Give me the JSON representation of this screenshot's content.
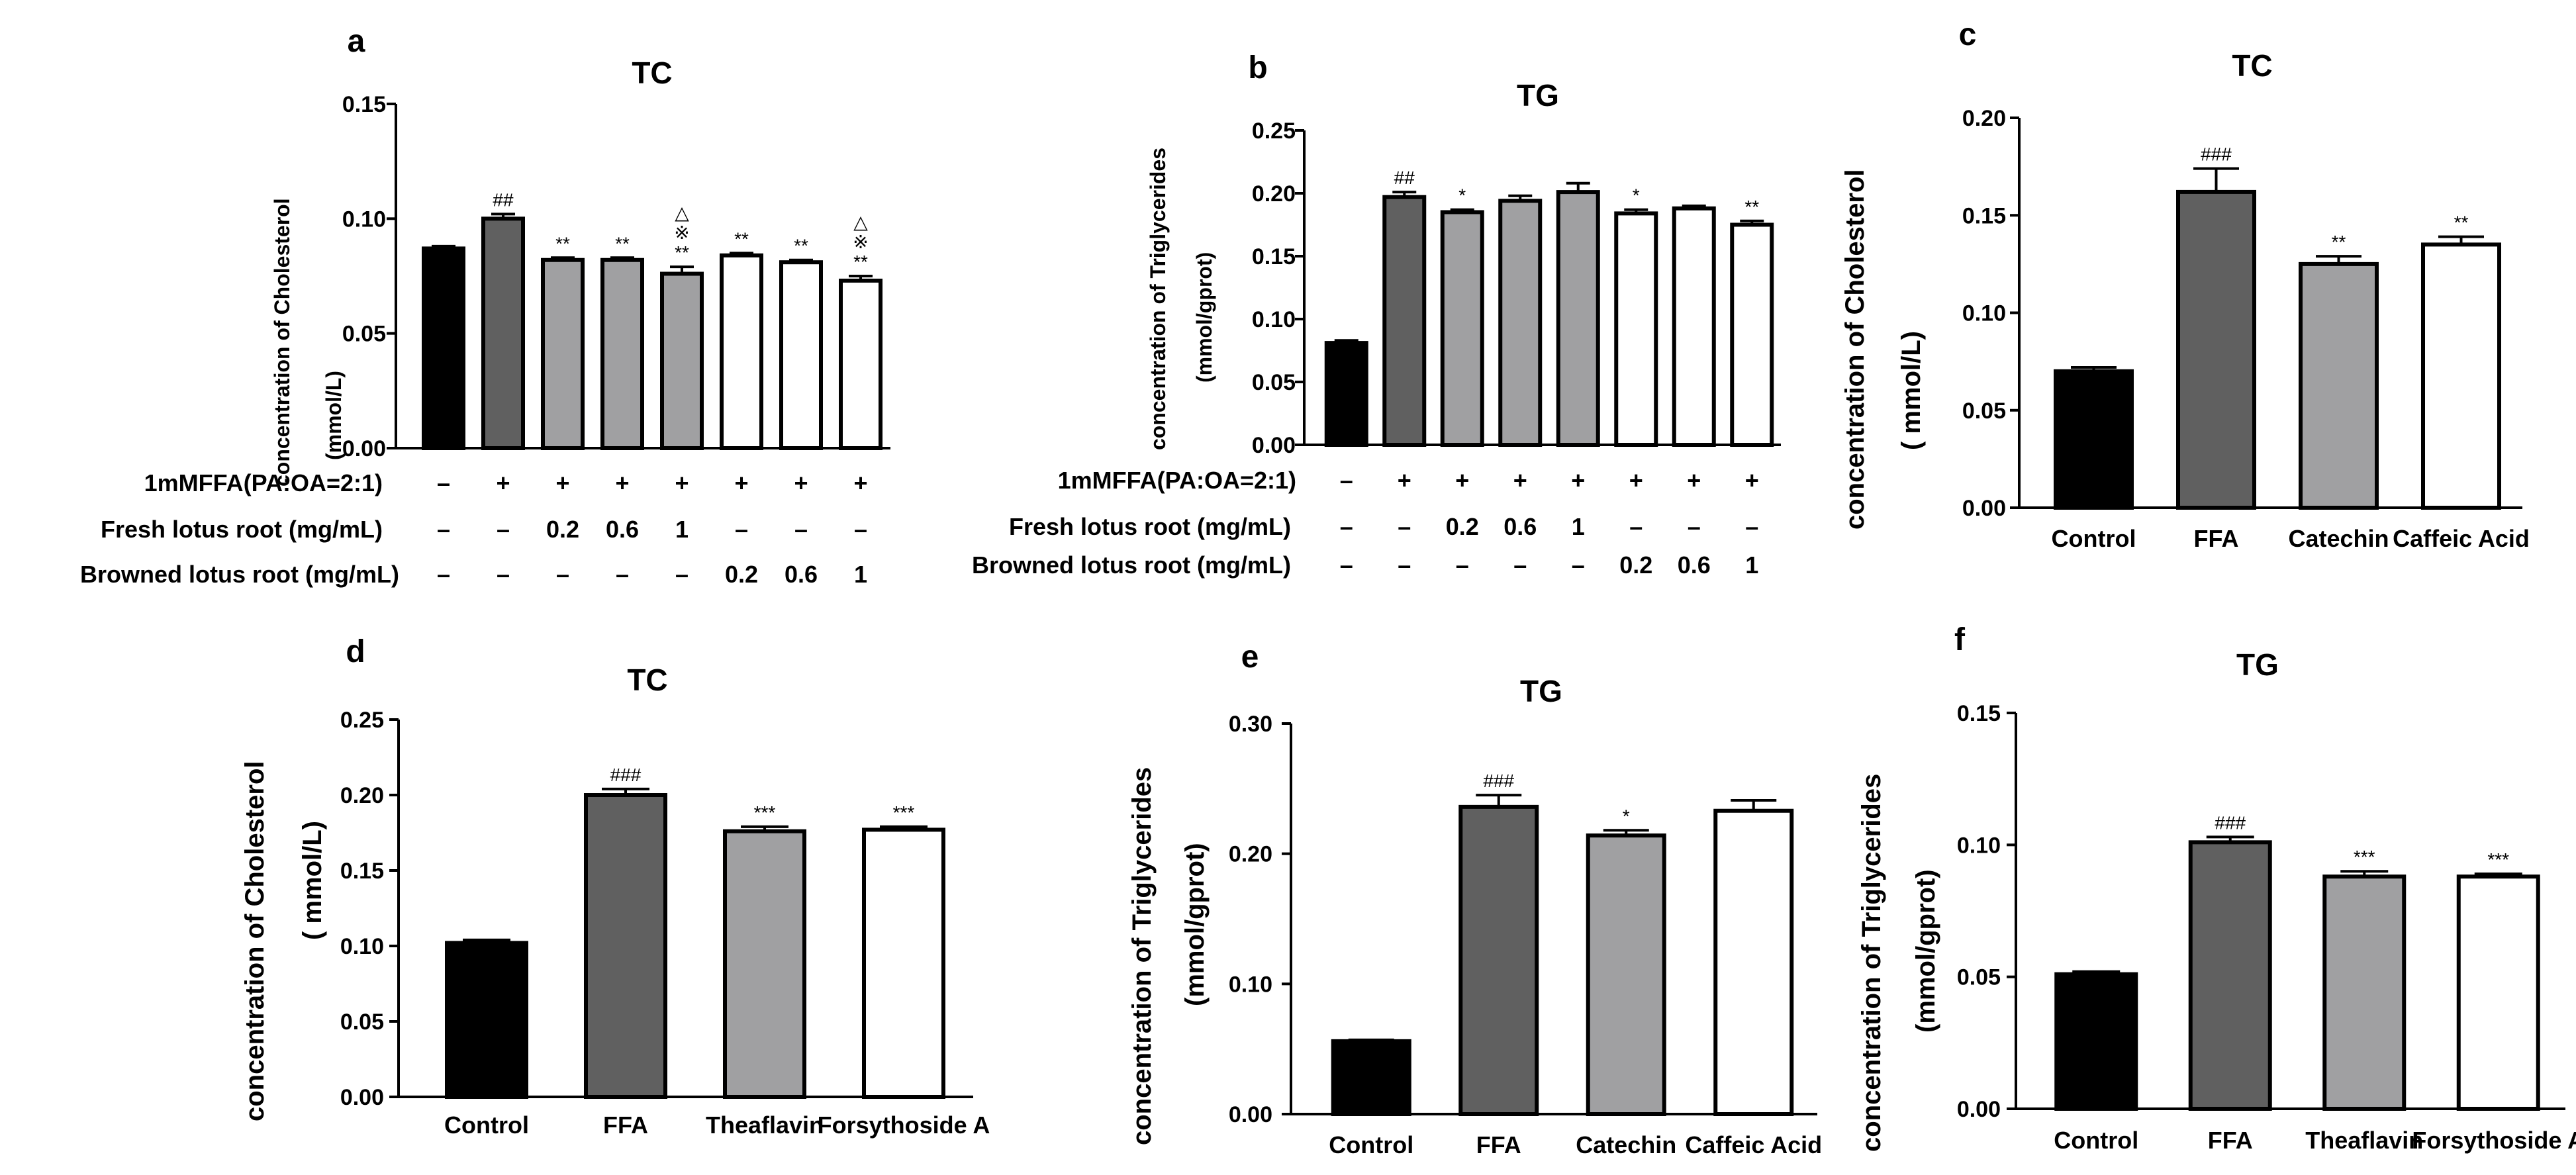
{
  "colors": {
    "control": "#000000",
    "ffa": "#606060",
    "treat": "#a0a0a2",
    "browned": "#ffffff",
    "stroke": "#000000",
    "text": "#000000"
  },
  "chart_data": [
    {
      "panel": "a",
      "type": "bar",
      "title": "TC",
      "ylabel_lines": [
        "concentration of Cholesterol",
        "(mmol/L)"
      ],
      "ylim": [
        0,
        0.15
      ],
      "yticks": [
        {
          "value": 0,
          "label": "0.00"
        },
        {
          "value": 0.05,
          "label": "0.05"
        },
        {
          "value": 0.1,
          "label": "0.10"
        },
        {
          "value": 0.15,
          "label": "0.15"
        }
      ],
      "bars": [
        {
          "value": 0.087,
          "error": 0.001,
          "fill": "control",
          "marks": []
        },
        {
          "value": 0.1,
          "error": 0.002,
          "fill": "ffa",
          "marks": [
            "##"
          ]
        },
        {
          "value": 0.082,
          "error": 0.001,
          "fill": "treat",
          "marks": [
            "**"
          ]
        },
        {
          "value": 0.082,
          "error": 0.001,
          "fill": "treat",
          "marks": [
            "**"
          ]
        },
        {
          "value": 0.076,
          "error": 0.003,
          "fill": "treat",
          "marks": [
            "△",
            "※",
            "**"
          ]
        },
        {
          "value": 0.084,
          "error": 0.001,
          "fill": "browned",
          "marks": [
            "**"
          ]
        },
        {
          "value": 0.081,
          "error": 0.001,
          "fill": "browned",
          "marks": [
            "**"
          ]
        },
        {
          "value": 0.073,
          "error": 0.002,
          "fill": "browned",
          "marks": [
            "△",
            "※",
            "**"
          ]
        }
      ],
      "conditions": [
        {
          "label": "1mMFFA(PA:OA=2:1)",
          "values": [
            "–",
            "+",
            "+",
            "+",
            "+",
            "+",
            "+",
            "+"
          ]
        },
        {
          "label": "Fresh lotus root (mg/mL)",
          "values": [
            "–",
            "–",
            "0.2",
            "0.6",
            "1",
            "–",
            "–",
            "–"
          ]
        },
        {
          "label": "Browned lotus root (mg/mL)",
          "values": [
            "–",
            "–",
            "–",
            "–",
            "–",
            "0.2",
            "0.6",
            "1"
          ]
        }
      ]
    },
    {
      "panel": "b",
      "type": "bar",
      "title": "TG",
      "ylabel_lines": [
        "concentration of Triglycerides",
        "(mmol/gprot)"
      ],
      "ylim": [
        0,
        0.25
      ],
      "yticks": [
        {
          "value": 0,
          "label": "0.00"
        },
        {
          "value": 0.05,
          "label": "0.05"
        },
        {
          "value": 0.1,
          "label": "0.10"
        },
        {
          "value": 0.15,
          "label": "0.15"
        },
        {
          "value": 0.2,
          "label": "0.20"
        },
        {
          "value": 0.25,
          "label": "0.25"
        }
      ],
      "bars": [
        {
          "value": 0.081,
          "error": 0.002,
          "fill": "control",
          "marks": []
        },
        {
          "value": 0.197,
          "error": 0.004,
          "fill": "ffa",
          "marks": [
            "##"
          ]
        },
        {
          "value": 0.185,
          "error": 0.002,
          "fill": "treat",
          "marks": [
            "*"
          ]
        },
        {
          "value": 0.194,
          "error": 0.004,
          "fill": "treat",
          "marks": []
        },
        {
          "value": 0.201,
          "error": 0.007,
          "fill": "treat",
          "marks": []
        },
        {
          "value": 0.184,
          "error": 0.003,
          "fill": "browned",
          "marks": [
            "*"
          ]
        },
        {
          "value": 0.188,
          "error": 0.002,
          "fill": "browned",
          "marks": []
        },
        {
          "value": 0.175,
          "error": 0.003,
          "fill": "browned",
          "marks": [
            "**"
          ]
        }
      ],
      "conditions": [
        {
          "label": "1mMFFA(PA:OA=2:1)",
          "values": [
            "–",
            "+",
            "+",
            "+",
            "+",
            "+",
            "+",
            "+"
          ]
        },
        {
          "label": "Fresh lotus root (mg/mL)",
          "values": [
            "–",
            "–",
            "0.2",
            "0.6",
            "1",
            "–",
            "–",
            "–"
          ]
        },
        {
          "label": "Browned lotus root (mg/mL)",
          "values": [
            "–",
            "–",
            "–",
            "–",
            "–",
            "0.2",
            "0.6",
            "1"
          ]
        }
      ]
    },
    {
      "panel": "c",
      "type": "bar",
      "title": "TC",
      "ylabel_lines": [
        "concentration of Cholesterol",
        "( mmol/L)"
      ],
      "ylim": [
        0,
        0.2
      ],
      "yticks": [
        {
          "value": 0,
          "label": "0.00"
        },
        {
          "value": 0.05,
          "label": "0.05"
        },
        {
          "value": 0.1,
          "label": "0.10"
        },
        {
          "value": 0.15,
          "label": "0.15"
        },
        {
          "value": 0.2,
          "label": "0.20"
        }
      ],
      "categories": [
        "Control",
        "FFA",
        "Catechin",
        "Caffeic Acid"
      ],
      "bars": [
        {
          "value": 0.07,
          "error": 0.002,
          "fill": "control",
          "marks": []
        },
        {
          "value": 0.162,
          "error": 0.012,
          "fill": "ffa",
          "marks": [
            "###"
          ]
        },
        {
          "value": 0.125,
          "error": 0.004,
          "fill": "treat",
          "marks": [
            "**"
          ]
        },
        {
          "value": 0.135,
          "error": 0.004,
          "fill": "browned",
          "marks": [
            "**"
          ]
        }
      ]
    },
    {
      "panel": "d",
      "type": "bar",
      "title": "TC",
      "ylabel_lines": [
        "concentration of Cholesterol",
        "( mmol/L)"
      ],
      "ylim": [
        0,
        0.25
      ],
      "yticks": [
        {
          "value": 0,
          "label": "0.00"
        },
        {
          "value": 0.05,
          "label": "0.05"
        },
        {
          "value": 0.1,
          "label": "0.10"
        },
        {
          "value": 0.15,
          "label": "0.15"
        },
        {
          "value": 0.2,
          "label": "0.20"
        },
        {
          "value": 0.25,
          "label": "0.25"
        }
      ],
      "categories": [
        "Control",
        "FFA",
        "Theaflavin",
        "Forsythoside A"
      ],
      "bars": [
        {
          "value": 0.102,
          "error": 0.002,
          "fill": "control",
          "marks": []
        },
        {
          "value": 0.2,
          "error": 0.004,
          "fill": "ffa",
          "marks": [
            "###"
          ]
        },
        {
          "value": 0.176,
          "error": 0.003,
          "fill": "treat",
          "marks": [
            "***"
          ]
        },
        {
          "value": 0.177,
          "error": 0.002,
          "fill": "browned",
          "marks": [
            "***"
          ]
        }
      ]
    },
    {
      "panel": "e",
      "type": "bar",
      "title": "TG",
      "ylabel_lines": [
        "concentration of Triglycerides",
        "(mmol/gprot)"
      ],
      "ylim": [
        0,
        0.3
      ],
      "yticks": [
        {
          "value": 0,
          "label": "0.00"
        },
        {
          "value": 0.1,
          "label": "0.10"
        },
        {
          "value": 0.2,
          "label": "0.20"
        },
        {
          "value": 0.3,
          "label": "0.30"
        }
      ],
      "categories": [
        "Control",
        "FFA",
        "Catechin",
        "Caffeic Acid"
      ],
      "bars": [
        {
          "value": 0.056,
          "error": 0.001,
          "fill": "control",
          "marks": []
        },
        {
          "value": 0.236,
          "error": 0.009,
          "fill": "ffa",
          "marks": [
            "###"
          ]
        },
        {
          "value": 0.214,
          "error": 0.004,
          "fill": "treat",
          "marks": [
            "*"
          ]
        },
        {
          "value": 0.233,
          "error": 0.008,
          "fill": "browned",
          "marks": []
        }
      ]
    },
    {
      "panel": "f",
      "type": "bar",
      "title": "TG",
      "ylabel_lines": [
        "concentration of Triglycerides",
        "(mmol/gprot)"
      ],
      "ylim": [
        0,
        0.15
      ],
      "yticks": [
        {
          "value": 0,
          "label": "0.00"
        },
        {
          "value": 0.05,
          "label": "0.05"
        },
        {
          "value": 0.1,
          "label": "0.10"
        },
        {
          "value": 0.15,
          "label": "0.15"
        }
      ],
      "categories": [
        "Control",
        "FFA",
        "Theaflavin",
        "Forsythoside A"
      ],
      "bars": [
        {
          "value": 0.051,
          "error": 0.001,
          "fill": "control",
          "marks": []
        },
        {
          "value": 0.101,
          "error": 0.002,
          "fill": "ffa",
          "marks": [
            "###"
          ]
        },
        {
          "value": 0.088,
          "error": 0.002,
          "fill": "treat",
          "marks": [
            "***"
          ]
        },
        {
          "value": 0.088,
          "error": 0.001,
          "fill": "browned",
          "marks": [
            "***"
          ]
        }
      ]
    }
  ]
}
